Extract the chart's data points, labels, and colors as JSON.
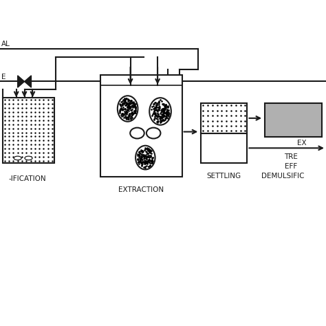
{
  "bg_color": "#ffffff",
  "line_color": "#1a1a1a",
  "lw": 1.5,
  "fig_w": 4.74,
  "fig_h": 4.74,
  "dpi": 100,
  "xlim": [
    -1.5,
    10.5
  ],
  "ylim": [
    0,
    10
  ],
  "labels": {
    "top": "AL",
    "valve": "E",
    "extraction": "EXTRACTION",
    "settling": "SETTLING",
    "demulsific": "DEMULSIFIC",
    "acidific": "-IFICATION",
    "ex": "EX",
    "tre": "TRE",
    "eff": "EFF"
  },
  "label_fs": 7.5
}
